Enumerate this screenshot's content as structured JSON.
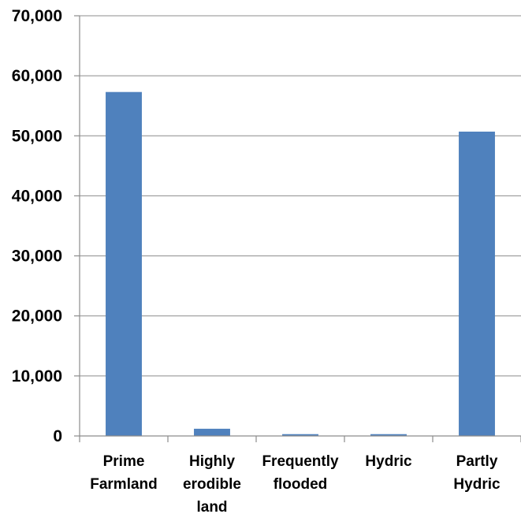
{
  "chart_data": {
    "type": "bar",
    "categories": [
      [
        "Prime",
        "Farmland"
      ],
      [
        "Highly",
        "erodible",
        "land"
      ],
      [
        "Frequently",
        "flooded"
      ],
      [
        "Hydric"
      ],
      [
        "Partly",
        "Hydric"
      ]
    ],
    "values": [
      57300,
      1200,
      300,
      300,
      50700
    ],
    "ylim": [
      0,
      70000
    ],
    "yticks": [
      0,
      10000,
      20000,
      30000,
      40000,
      50000,
      60000,
      70000
    ],
    "ytick_labels": [
      "0",
      "10,000",
      "20,000",
      "30,000",
      "40,000",
      "50,000",
      "60,000",
      "70,000"
    ],
    "bar_color": "#4f81bd",
    "grid": true,
    "legend": "none"
  }
}
